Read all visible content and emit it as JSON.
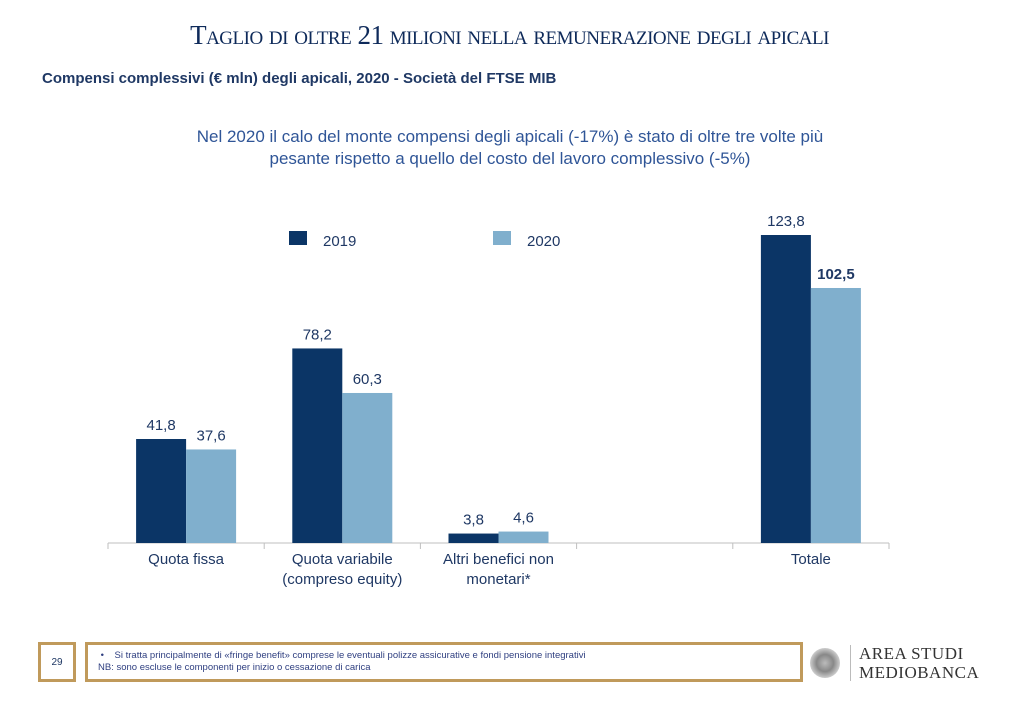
{
  "header": {
    "title": "Taglio di oltre 21 milioni nella remunerazione degli apicali",
    "subtitle": "Compensi complessivi (€ mln) degli apicali, 2020 - Società del FTSE MIB"
  },
  "note": {
    "line1": "Nel 2020 il calo del monte compensi degli apicali (-17%) è stato di oltre tre volte più",
    "line2": "pesante rispetto a quello del costo del lavoro complessivo (-5%)"
  },
  "chart_data": {
    "type": "bar",
    "categories": [
      [
        "Quota fissa"
      ],
      [
        "Quota variabile",
        "(compreso equity)"
      ],
      [
        "Altri benefici non",
        "monetari*"
      ],
      [],
      [
        "Totale"
      ]
    ],
    "series": [
      {
        "name": "2019",
        "color": "#0b3566",
        "values": [
          41.8,
          78.2,
          3.8,
          null,
          123.8
        ],
        "labels": [
          "41,8",
          "78,2",
          "3,8",
          "",
          "123,8"
        ]
      },
      {
        "name": "2020",
        "color": "#80afcd",
        "values": [
          37.6,
          60.3,
          4.6,
          null,
          102.5
        ],
        "labels": [
          "37,6",
          "60,3",
          "4,6",
          "",
          "102,5"
        ]
      }
    ],
    "legend_position": "top",
    "grid": false
  },
  "footer": {
    "page": "29",
    "bullet": "•",
    "footnote1": "Si tratta principalmente di «fringe benefit» comprese le eventuali polizze assicurative e fondi pensione integrativi",
    "footnote2": "NB: sono escluse le componenti per inizio o cessazione di carica",
    "logo_line1": "AREA STUDI",
    "logo_line2": "MEDIOBANCA"
  }
}
